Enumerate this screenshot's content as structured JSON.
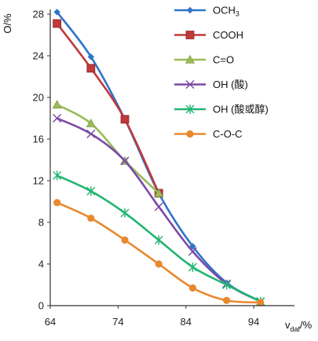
{
  "chart_data": {
    "type": "line",
    "title": "",
    "xlabel": "v",
    "xlabel_sub": "daf",
    "xlabel_suffix": "/%",
    "ylabel": "O/%",
    "xlim": [
      64,
      100
    ],
    "ylim": [
      0,
      28
    ],
    "xticks": [
      "64",
      "74",
      "84",
      "94"
    ],
    "yticks": [
      "0",
      "4",
      "8",
      "12",
      "16",
      "20",
      "24",
      "28"
    ],
    "grid": false,
    "legend_position": "right",
    "series": [
      {
        "name": "OCH₃",
        "color": "#2e75c9",
        "marker": "diamond",
        "x": [
          65,
          70,
          75,
          80,
          85,
          90,
          95
        ],
        "y": [
          28.2,
          23.9,
          17.9,
          10.8,
          5.7,
          2.2,
          0.4
        ]
      },
      {
        "name": "COOH",
        "color": "#c0393b",
        "marker": "square",
        "x": [
          65,
          70,
          75,
          80
        ],
        "y": [
          27.1,
          22.8,
          17.9,
          10.8
        ]
      },
      {
        "name": "C=O",
        "color": "#9bbb59",
        "marker": "triangle",
        "x": [
          65,
          70,
          75,
          80
        ],
        "y": [
          19.3,
          17.5,
          13.9,
          10.8
        ]
      },
      {
        "name": "OH (酸)",
        "color": "#7b4aa6",
        "marker": "x",
        "x": [
          65,
          70,
          75,
          80,
          85,
          90,
          95
        ],
        "y": [
          18.0,
          16.5,
          13.9,
          9.5,
          5.2,
          2.1,
          0.4
        ]
      },
      {
        "name": "OH (酸或醇)",
        "color": "#22b573",
        "marker": "star",
        "x": [
          65,
          70,
          75,
          80,
          85,
          90,
          95
        ],
        "y": [
          12.5,
          11.0,
          8.9,
          6.3,
          3.7,
          2.0,
          0.4
        ]
      },
      {
        "name": "C-O-C",
        "color": "#e8892f",
        "marker": "circle",
        "x": [
          65,
          70,
          75,
          80,
          85,
          90,
          95
        ],
        "y": [
          9.9,
          8.4,
          6.3,
          4.0,
          1.7,
          0.5,
          0.3
        ]
      }
    ]
  }
}
